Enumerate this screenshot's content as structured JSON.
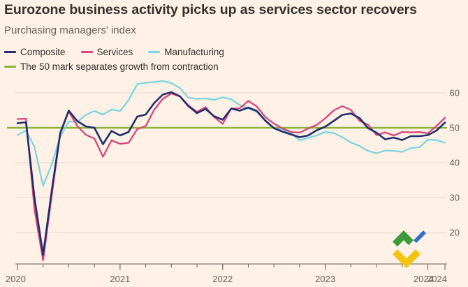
{
  "header": {
    "title": "Eurozone business activity picks up as services sector recovers",
    "subtitle": "Purchasing managers' index"
  },
  "legend": {
    "composite": "Composite",
    "services": "Services",
    "manufacturing": "Manufacturing",
    "reference": "The 50 mark separates growth from contraction"
  },
  "colors": {
    "composite": "#1f2e6e",
    "services": "#d8467a",
    "manufacturing": "#7fd4e0",
    "reference": "#8ab53b",
    "grid": "#e3d6ca",
    "axis": "#66605c"
  },
  "chart_data": {
    "type": "line",
    "title": "Eurozone business activity picks up as services sector recovers",
    "subtitle": "Purchasing managers' index",
    "xlabel": "",
    "ylabel": "",
    "x_start": "2020-01",
    "x_end": "2024-02",
    "x_ticks": [
      {
        "label": "2020",
        "month_index": 0
      },
      {
        "label": "2021",
        "month_index": 12
      },
      {
        "label": "2022",
        "month_index": 24
      },
      {
        "label": "2023",
        "month_index": 36
      },
      {
        "label": "2024",
        "month_index": 48
      },
      {
        "label": "2024",
        "month_index": 50
      }
    ],
    "ylim": [
      11,
      63
    ],
    "y_ticks": [
      20,
      30,
      40,
      50,
      60
    ],
    "grid": true,
    "reference_line": {
      "value": 50,
      "label": "The 50 mark separates growth from contraction"
    },
    "series": [
      {
        "name": "Composite",
        "key": "composite",
        "values": [
          51.3,
          51.6,
          29.7,
          13.6,
          31.9,
          48.5,
          54.9,
          51.9,
          50.4,
          50.0,
          45.3,
          49.1,
          47.8,
          48.8,
          53.2,
          53.8,
          57.1,
          59.5,
          60.2,
          59.0,
          56.2,
          54.2,
          55.4,
          53.3,
          52.3,
          55.5,
          54.9,
          55.8,
          54.8,
          52.0,
          49.9,
          48.9,
          48.1,
          47.3,
          47.8,
          49.3,
          50.3,
          52.0,
          53.7,
          54.1,
          52.8,
          49.9,
          48.6,
          46.7,
          47.2,
          46.5,
          47.6,
          47.6,
          47.9,
          49.2,
          51.5
        ]
      },
      {
        "name": "Services",
        "key": "services",
        "values": [
          52.5,
          52.6,
          26.4,
          12.0,
          30.5,
          48.3,
          54.7,
          50.5,
          48.0,
          46.9,
          41.7,
          46.4,
          45.4,
          45.7,
          49.6,
          50.5,
          55.2,
          58.3,
          59.8,
          59.0,
          56.4,
          54.6,
          55.9,
          53.1,
          51.1,
          55.5,
          55.6,
          57.7,
          56.1,
          53.0,
          51.2,
          49.8,
          48.8,
          48.6,
          49.8,
          50.8,
          52.7,
          55.0,
          56.2,
          55.1,
          52.0,
          50.9,
          47.9,
          48.7,
          47.8,
          48.8,
          48.7,
          48.8,
          48.4,
          50.5,
          52.9
        ]
      },
      {
        "name": "Manufacturing",
        "key": "manufacturing",
        "values": [
          47.9,
          49.2,
          44.5,
          33.4,
          39.4,
          47.4,
          51.8,
          51.7,
          53.7,
          54.8,
          53.8,
          55.2,
          54.8,
          57.9,
          62.5,
          62.9,
          63.1,
          63.4,
          62.8,
          61.4,
          58.6,
          58.3,
          58.4,
          58.0,
          58.7,
          58.2,
          56.5,
          55.5,
          54.6,
          52.1,
          49.8,
          49.6,
          48.4,
          46.4,
          47.1,
          47.8,
          48.8,
          48.5,
          47.3,
          45.8,
          44.8,
          43.4,
          42.7,
          43.5,
          43.4,
          43.1,
          44.2,
          44.4,
          46.6,
          46.5,
          45.7
        ]
      }
    ],
    "annotations": []
  }
}
